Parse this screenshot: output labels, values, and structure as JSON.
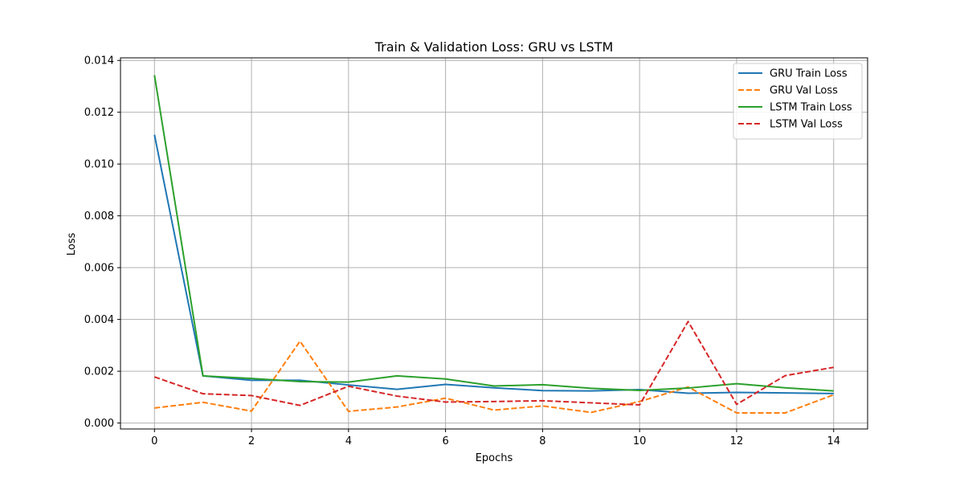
{
  "chart_data": {
    "type": "line",
    "title": "Train & Validation Loss: GRU vs LSTM",
    "xlabel": "Epochs",
    "ylabel": "Loss",
    "xlim": [
      -0.7,
      14.7
    ],
    "ylim": [
      -0.00023,
      0.0141
    ],
    "x_ticks": [
      0,
      2,
      4,
      6,
      8,
      10,
      12,
      14
    ],
    "x_tick_labels": [
      "0",
      "2",
      "4",
      "6",
      "8",
      "10",
      "12",
      "14"
    ],
    "y_ticks": [
      0.0,
      0.002,
      0.004,
      0.006,
      0.008,
      0.01,
      0.012,
      0.014
    ],
    "y_tick_labels": [
      "0.000",
      "0.002",
      "0.004",
      "0.006",
      "0.008",
      "0.010",
      "0.012",
      "0.014"
    ],
    "grid": true,
    "legend_position": "top-right",
    "x": [
      0,
      1,
      2,
      3,
      4,
      5,
      6,
      7,
      8,
      9,
      10,
      11,
      12,
      13,
      14
    ],
    "series": [
      {
        "name": "GRU Train Loss",
        "color": "#1f77b4",
        "dashed": false,
        "values": [
          0.01113,
          0.00182,
          0.00165,
          0.00165,
          0.00147,
          0.0013,
          0.00149,
          0.00136,
          0.00125,
          0.00124,
          0.00129,
          0.00115,
          0.00118,
          0.00116,
          0.00114
        ]
      },
      {
        "name": "GRU Val Loss",
        "color": "#ff7f0e",
        "dashed": true,
        "values": [
          0.00058,
          0.0008,
          0.00046,
          0.00316,
          0.00045,
          0.00062,
          0.00096,
          0.0005,
          0.00066,
          0.00041,
          0.00083,
          0.00139,
          0.00039,
          0.00039,
          0.00109
        ]
      },
      {
        "name": "LSTM Train Loss",
        "color": "#2ca02c",
        "dashed": false,
        "values": [
          0.01343,
          0.00182,
          0.00172,
          0.0016,
          0.00158,
          0.00182,
          0.0017,
          0.00143,
          0.00148,
          0.00134,
          0.00126,
          0.00135,
          0.00152,
          0.00136,
          0.00124
        ]
      },
      {
        "name": "LSTM Val Loss",
        "color": "#d62728",
        "dashed": true,
        "values": [
          0.00178,
          0.00113,
          0.00106,
          0.00068,
          0.00142,
          0.00104,
          0.00081,
          0.00083,
          0.00086,
          0.00078,
          0.0007,
          0.00392,
          0.00072,
          0.00183,
          0.00215
        ]
      }
    ]
  }
}
